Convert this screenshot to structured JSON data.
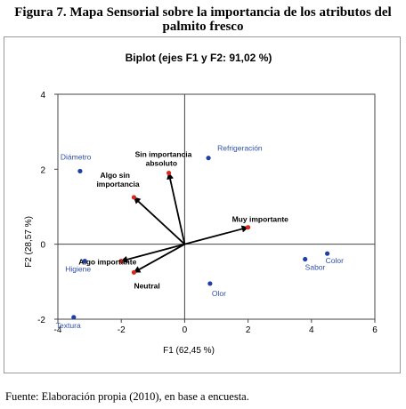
{
  "figure": {
    "title_line1": "Figura 7.  Mapa Sensorial sobre la importancia de los atributos del",
    "title_line2": "palmito fresco",
    "source": "Fuente: Elaboración propia (2010), en base a encuesta."
  },
  "chart_data": {
    "type": "scatter",
    "title": "Biplot (ejes F1 y F2: 91,02 %)",
    "xlabel": "F1 (62,45 %)",
    "ylabel": "F2 (28,57 %)",
    "xlim": [
      -4,
      6
    ],
    "ylim": [
      -2,
      4
    ],
    "xticks": [
      "-4",
      "-2",
      "0",
      "2",
      "4",
      "6"
    ],
    "yticks": [
      "-2",
      "0",
      "2",
      "4"
    ],
    "grid": false,
    "observations": {
      "color": "#1f3fa8",
      "points": [
        {
          "label": "Diámetro",
          "x": -3.3,
          "y": 1.95
        },
        {
          "label": "Refrigeración",
          "x": 0.75,
          "y": 2.3
        },
        {
          "label": "Higiene",
          "x": -3.15,
          "y": -0.45
        },
        {
          "label": "Sabor",
          "x": 3.8,
          "y": -0.4
        },
        {
          "label": "Color",
          "x": 4.5,
          "y": -0.25
        },
        {
          "label": "Olor",
          "x": 0.8,
          "y": -1.05
        },
        {
          "label": "Textura",
          "x": -3.5,
          "y": -1.95
        }
      ]
    },
    "variables": {
      "color": "#d9281e",
      "vectors": [
        {
          "label": "Sin importancia absoluto",
          "x": -0.5,
          "y": 1.9
        },
        {
          "label": "Algo sin importancia",
          "x": -1.6,
          "y": 1.25
        },
        {
          "label": "Muy importante",
          "x": 2.0,
          "y": 0.45
        },
        {
          "label": "Algo importante",
          "x": -2.0,
          "y": -0.45
        },
        {
          "label": "Neutral",
          "x": -1.6,
          "y": -0.75
        }
      ]
    }
  }
}
